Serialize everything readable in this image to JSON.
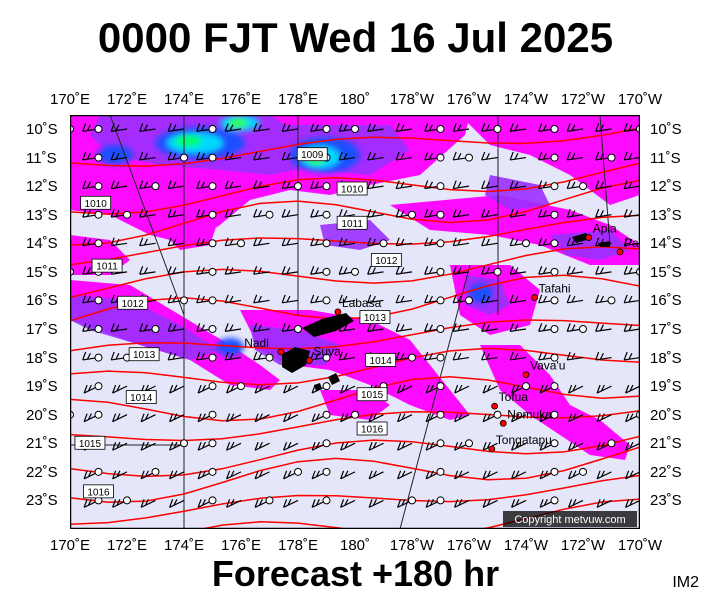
{
  "title": "0000 FJT Wed 16 Jul 2025",
  "footer": "Forecast +180 hr",
  "corner_label": "IM2",
  "copyright": "Copyright metvuw.com",
  "lon_labels": [
    "170˚E",
    "172˚E",
    "174˚E",
    "176˚E",
    "178˚E",
    "180˚",
    "178˚W",
    "176˚W",
    "174˚W",
    "172˚W",
    "170˚W"
  ],
  "lat_labels": [
    "10˚S",
    "11˚S",
    "12˚S",
    "13˚S",
    "14˚S",
    "15˚S",
    "16˚S",
    "17˚S",
    "18˚S",
    "19˚S",
    "20˚S",
    "21˚S",
    "22˚S",
    "23˚S"
  ],
  "places": [
    {
      "name": "Apia",
      "lon": -171.8,
      "lat": -13.8
    },
    {
      "name": "Pago Pago",
      "lon": -170.7,
      "lat": -14.3
    },
    {
      "name": "Tafahi",
      "lon": -173.7,
      "lat": -15.9
    },
    {
      "name": "Labasa",
      "lon": 179.4,
      "lat": -16.4
    },
    {
      "name": "Nadi",
      "lon": 177.4,
      "lat": -17.8
    },
    {
      "name": "Suva",
      "lon": 178.4,
      "lat": -18.1
    },
    {
      "name": "Vava'u",
      "lon": -174.0,
      "lat": -18.6
    },
    {
      "name": "Tofua",
      "lon": -175.1,
      "lat": -19.7
    },
    {
      "name": "Nomuka",
      "lon": -174.8,
      "lat": -20.3
    },
    {
      "name": "Tongatapu",
      "lon": -175.2,
      "lat": -21.2
    }
  ],
  "isobars": [
    {
      "label": "1009",
      "lon": 178.5,
      "lat": -10.9
    },
    {
      "label": "1010",
      "lon": 170.9,
      "lat": -12.6
    },
    {
      "label": "1010",
      "lon": 179.9,
      "lat": -12.1
    },
    {
      "label": "1011",
      "lon": 171.3,
      "lat": -14.8
    },
    {
      "label": "1011",
      "lon": 179.9,
      "lat": -13.3
    },
    {
      "label": "1012",
      "lon": 172.2,
      "lat": -16.1
    },
    {
      "label": "1012",
      "lon": -178.9,
      "lat": -14.6
    },
    {
      "label": "1013",
      "lon": 172.6,
      "lat": -17.9
    },
    {
      "label": "1013",
      "lon": -179.3,
      "lat": -16.6
    },
    {
      "label": "1014",
      "lon": 172.5,
      "lat": -19.4
    },
    {
      "label": "1014",
      "lon": -179.1,
      "lat": -18.1
    },
    {
      "label": "1015",
      "lon": 170.7,
      "lat": -21.0
    },
    {
      "label": "1015",
      "lon": -179.4,
      "lat": -19.3
    },
    {
      "label": "1016",
      "lon": 171.0,
      "lat": -22.7
    },
    {
      "label": "1016",
      "lon": -179.4,
      "lat": -20.5
    }
  ]
}
